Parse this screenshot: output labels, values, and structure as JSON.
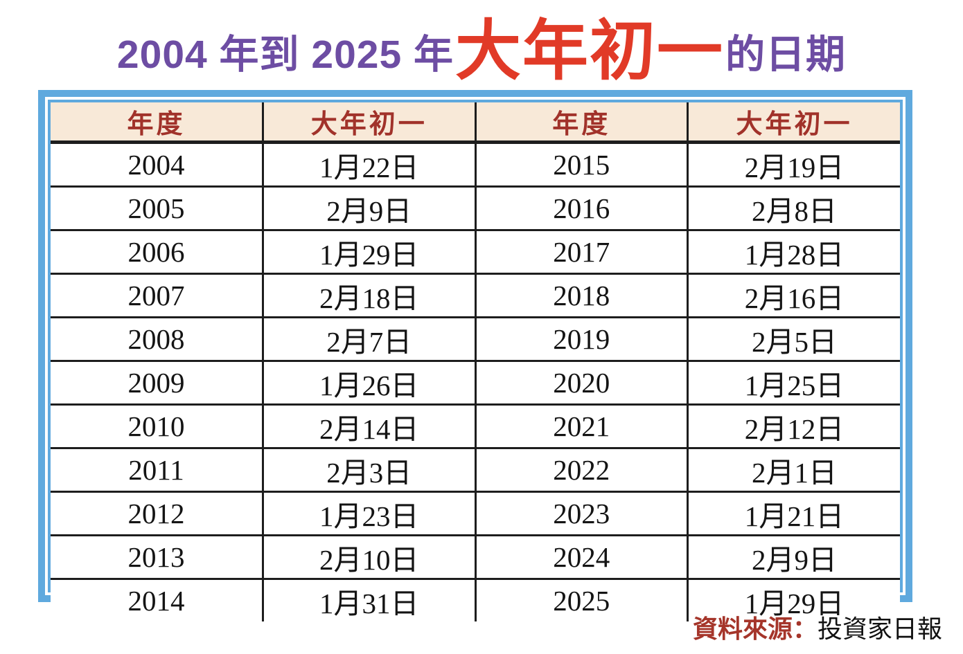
{
  "title": {
    "prefix": "2004 年到 2025 年",
    "highlight": "大年初一",
    "suffix": "的日期"
  },
  "table": {
    "columns": [
      "年度",
      "大年初一",
      "年度",
      "大年初一"
    ],
    "rows": [
      [
        "2004",
        "1月22日",
        "2015",
        "2月19日"
      ],
      [
        "2005",
        "2月9日",
        "2016",
        "2月8日"
      ],
      [
        "2006",
        "1月29日",
        "2017",
        "1月28日"
      ],
      [
        "2007",
        "2月18日",
        "2018",
        "2月16日"
      ],
      [
        "2008",
        "2月7日",
        "2019",
        "2月5日"
      ],
      [
        "2009",
        "1月26日",
        "2020",
        "1月25日"
      ],
      [
        "2010",
        "2月14日",
        "2021",
        "2月12日"
      ],
      [
        "2011",
        "2月3日",
        "2022",
        "2月1日"
      ],
      [
        "2012",
        "1月23日",
        "2023",
        "1月21日"
      ],
      [
        "2013",
        "2月10日",
        "2024",
        "2月9日"
      ],
      [
        "2014",
        "1月31日",
        "2025",
        "1月29日"
      ]
    ]
  },
  "source": {
    "label": "資料來源：",
    "value": "投資家日報"
  },
  "colors": {
    "title_purple": "#6d4da3",
    "title_red": "#e13a27",
    "frame_blue": "#5fa9de",
    "header_bg": "#f8e9d8",
    "header_text": "#a1322a",
    "cell_text": "#141414",
    "source_red": "#a5352a"
  },
  "chart_data": {
    "type": "table",
    "title": "2004 年到 2025 年大年初一的日期",
    "columns": [
      "年度",
      "大年初一",
      "年度",
      "大年初一"
    ],
    "rows": [
      [
        "2004",
        "1月22日",
        "2015",
        "2月19日"
      ],
      [
        "2005",
        "2月9日",
        "2016",
        "2月8日"
      ],
      [
        "2006",
        "1月29日",
        "2017",
        "1月28日"
      ],
      [
        "2007",
        "2月18日",
        "2018",
        "2月16日"
      ],
      [
        "2008",
        "2月7日",
        "2019",
        "2月5日"
      ],
      [
        "2009",
        "1月26日",
        "2020",
        "1月25日"
      ],
      [
        "2010",
        "2月14日",
        "2021",
        "2月12日"
      ],
      [
        "2011",
        "2月3日",
        "2022",
        "2月1日"
      ],
      [
        "2012",
        "1月23日",
        "2023",
        "1月21日"
      ],
      [
        "2013",
        "2月10日",
        "2024",
        "2月9日"
      ],
      [
        "2014",
        "1月31日",
        "2025",
        "1月29日"
      ]
    ],
    "source": "資料來源：投資家日報"
  }
}
